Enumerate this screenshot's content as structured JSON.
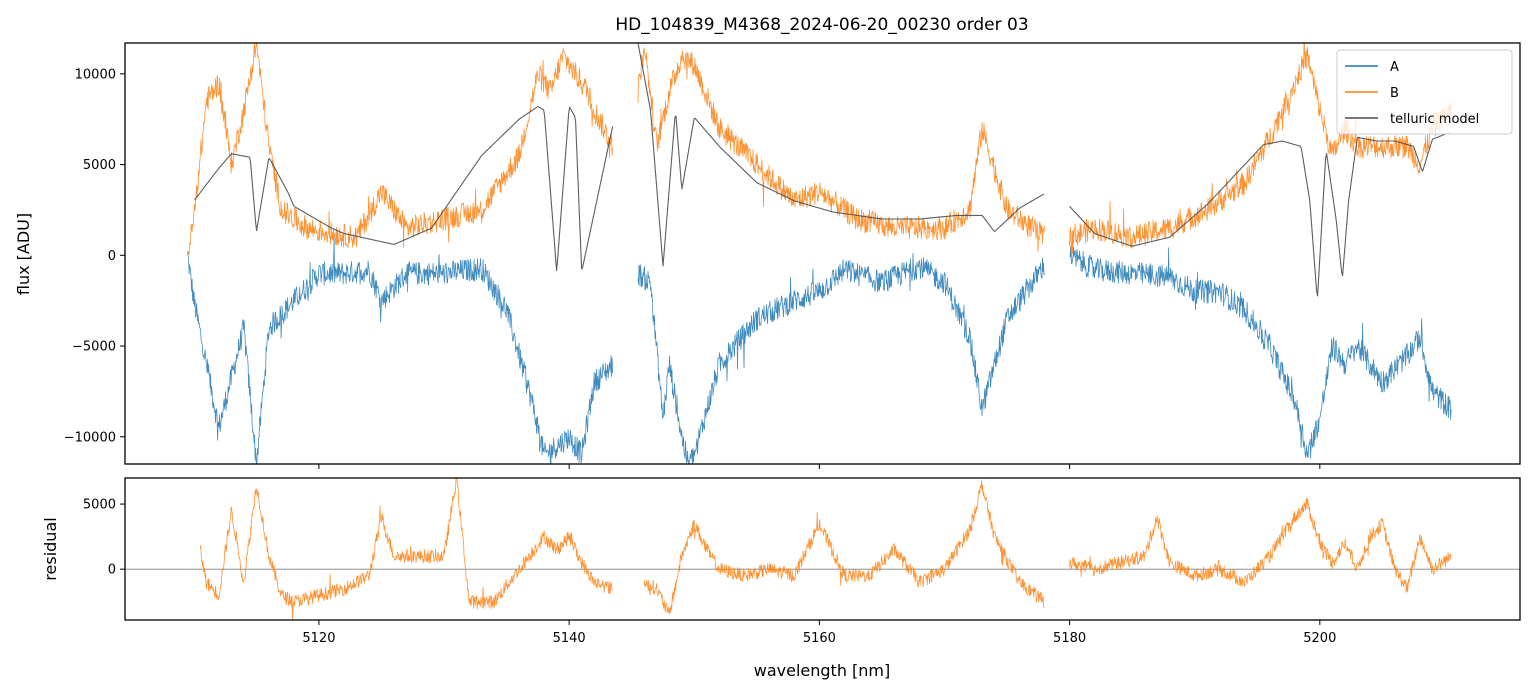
{
  "chart_data": [
    {
      "type": "line",
      "title": "HD_104839_M4368_2024-06-20_00230  order 03",
      "xlabel": "",
      "ylabel": "flux [ADU]",
      "xlim": [
        5104.5,
        5216.0
      ],
      "ylim": [
        -11500,
        11700
      ],
      "xticks": [
        5120,
        5140,
        5160,
        5180,
        5200
      ],
      "xticks_labeled": false,
      "yticks": [
        -10000,
        -5000,
        0,
        5000,
        10000
      ],
      "ytick_labels": [
        "−10000",
        "−5000",
        "0",
        "5000",
        "10000"
      ],
      "grid": false,
      "legend_position": "top-right",
      "segments": [
        [
          5109.5,
          5143.5
        ],
        [
          5145.5,
          5178.0
        ],
        [
          5180.0,
          5210.5
        ]
      ],
      "series": [
        {
          "name": "A",
          "color": "#1f77b4",
          "x": [
            5109.5,
            5110,
            5112,
            5114,
            5115,
            5116,
            5118,
            5120,
            5122,
            5124,
            5125,
            5127,
            5130,
            5133,
            5135,
            5137,
            5138,
            5140,
            5141,
            5142,
            5143.5,
            5145.5,
            5146.5,
            5147.5,
            5148,
            5149,
            5149.5,
            5150,
            5152,
            5155,
            5158,
            5160,
            5162,
            5165,
            5168,
            5170,
            5172,
            5173,
            5175,
            5178,
            5180,
            5182,
            5185,
            5188,
            5190,
            5192,
            5194,
            5196,
            5198,
            5199,
            5200,
            5201,
            5202,
            5203,
            5205,
            5207,
            5208,
            5209,
            5210.5
          ],
          "values": [
            0,
            -2500,
            -9500,
            -4000,
            -11500,
            -4000,
            -2500,
            -1000,
            -1000,
            -800,
            -2500,
            -1000,
            -1000,
            -700,
            -3000,
            -8000,
            -11000,
            -10000,
            -11000,
            -7000,
            -6000,
            -1000,
            -1500,
            -9000,
            -6000,
            -10000,
            -11500,
            -11000,
            -6000,
            -3500,
            -2500,
            -2000,
            -800,
            -1500,
            -600,
            -1500,
            -4500,
            -8500,
            -3500,
            -500,
            0,
            -800,
            -1000,
            -1200,
            -2000,
            -2000,
            -3000,
            -5000,
            -8000,
            -11000,
            -9000,
            -5000,
            -6000,
            -5000,
            -7000,
            -5500,
            -4500,
            -7500,
            -8500
          ]
        },
        {
          "name": "B",
          "color": "#ff7f0e",
          "x": [
            5109.5,
            5110,
            5111,
            5112,
            5113,
            5114,
            5115,
            5116,
            5117,
            5119,
            5121,
            5123,
            5125,
            5127,
            5130,
            5133,
            5136,
            5137.5,
            5138.5,
            5139.5,
            5140.5,
            5141.5,
            5142,
            5143.5,
            5145.5,
            5146,
            5147,
            5148,
            5149,
            5150,
            5152,
            5155,
            5158,
            5160,
            5163,
            5166,
            5170,
            5172,
            5173,
            5175,
            5178,
            5180,
            5182,
            5185,
            5188,
            5191,
            5194,
            5196,
            5198,
            5199,
            5200,
            5201,
            5202,
            5203,
            5205,
            5207,
            5208,
            5209,
            5210.5
          ],
          "values": [
            0,
            2000,
            8500,
            9500,
            5000,
            8000,
            11700,
            6000,
            2500,
            1500,
            1200,
            1000,
            3500,
            1500,
            2000,
            2500,
            5500,
            10000,
            9000,
            11000,
            10000,
            9000,
            8000,
            6000,
            9000,
            11700,
            6000,
            9000,
            11000,
            10500,
            7000,
            5000,
            3000,
            3500,
            2000,
            1500,
            1500,
            2500,
            7000,
            2500,
            1000,
            1000,
            1500,
            1000,
            1500,
            2500,
            4000,
            6500,
            9500,
            11000,
            8000,
            5500,
            7000,
            6000,
            6000,
            6000,
            5000,
            7000,
            8000
          ]
        },
        {
          "name": "telluric model",
          "color": "#4d4d4d",
          "x": [
            5110,
            5112,
            5113,
            5114.5,
            5115,
            5116,
            5117.5,
            5118,
            5121,
            5122,
            5124,
            5126,
            5129,
            5133,
            5136,
            5137.5,
            5138,
            5139,
            5140,
            5140.5,
            5141,
            5143.5,
            5145.5,
            5146.5,
            5147.5,
            5148.5,
            5149,
            5150,
            5152,
            5155,
            5158,
            5161,
            5165,
            5168,
            5171,
            5173,
            5174,
            5176,
            5178,
            5180,
            5182,
            5185,
            5188,
            5191,
            5194,
            5195.5,
            5197,
            5198.5,
            5199.2,
            5199.8,
            5200.5,
            5201.3,
            5201.8,
            5202.3,
            5203,
            5204.5,
            5206,
            5207.5,
            5208.2,
            5209,
            5210.5
          ],
          "values": [
            3000,
            4800,
            5600,
            5400,
            1300,
            5400,
            3500,
            2700,
            1500,
            1200,
            900,
            600,
            1500,
            5500,
            7500,
            8200,
            8000,
            -900,
            8200,
            7600,
            -900,
            7200,
            11700,
            8000,
            -600,
            8000,
            3600,
            7600,
            6000,
            4000,
            3000,
            2400,
            2000,
            2000,
            2200,
            2200,
            1300,
            2600,
            3400,
            2700,
            1200,
            500,
            1000,
            2800,
            5000,
            6100,
            6300,
            6000,
            3000,
            -2500,
            5800,
            2000,
            -1300,
            3000,
            6500,
            6300,
            6300,
            6000,
            4600,
            6400,
            6800
          ]
        }
      ]
    },
    {
      "type": "line",
      "title": "",
      "xlabel": "wavelength [nm]",
      "ylabel": "residual",
      "xlim": [
        5104.5,
        5216.0
      ],
      "ylim": [
        -3900,
        7000
      ],
      "xticks": [
        5120,
        5140,
        5160,
        5180,
        5200
      ],
      "xtick_labels": [
        "5120",
        "5140",
        "5160",
        "5180",
        "5200"
      ],
      "yticks": [
        0,
        5000
      ],
      "ytick_labels": [
        "0",
        "5000"
      ],
      "zero_line": true,
      "grid": false,
      "segments": [
        [
          5110.5,
          5143.5
        ],
        [
          5146.0,
          5178.0
        ],
        [
          5180.0,
          5210.5
        ]
      ],
      "series": [
        {
          "name": "B",
          "color": "#ff7f0e",
          "x": [
            5110.5,
            5111,
            5112,
            5113,
            5114,
            5115,
            5116,
            5117,
            5118,
            5120,
            5122,
            5124,
            5125,
            5126,
            5128,
            5130,
            5131,
            5132,
            5134,
            5136,
            5138,
            5139,
            5140,
            5141,
            5142,
            5143.5,
            5146,
            5147,
            5148,
            5149,
            5150,
            5151,
            5152,
            5154,
            5156,
            5158,
            5160,
            5162,
            5164,
            5166,
            5168,
            5170,
            5172,
            5173,
            5174,
            5176,
            5178,
            5180,
            5182,
            5184,
            5186,
            5187,
            5188,
            5190,
            5192,
            5194,
            5196,
            5198,
            5199,
            5200,
            5201,
            5202,
            5203,
            5204,
            5205,
            5206,
            5207,
            5208,
            5209,
            5210.5
          ],
          "values": [
            1500,
            -1000,
            -2000,
            4500,
            -1000,
            6500,
            1000,
            -2000,
            -2500,
            -2000,
            -1500,
            -500,
            4000,
            1000,
            1000,
            1000,
            7000,
            -2500,
            -2500,
            0,
            2500,
            1500,
            2500,
            500,
            -1000,
            -1500,
            -1000,
            -1500,
            -3500,
            1000,
            3500,
            1500,
            0,
            -500,
            0,
            -500,
            3500,
            -500,
            -500,
            1500,
            -1000,
            0,
            3000,
            6500,
            2500,
            -1000,
            -2500,
            500,
            0,
            500,
            1000,
            4000,
            500,
            -500,
            0,
            -1000,
            1000,
            4000,
            5000,
            2000,
            500,
            2000,
            0,
            2500,
            3500,
            0,
            -1500,
            2500,
            0,
            1000
          ]
        }
      ]
    }
  ]
}
